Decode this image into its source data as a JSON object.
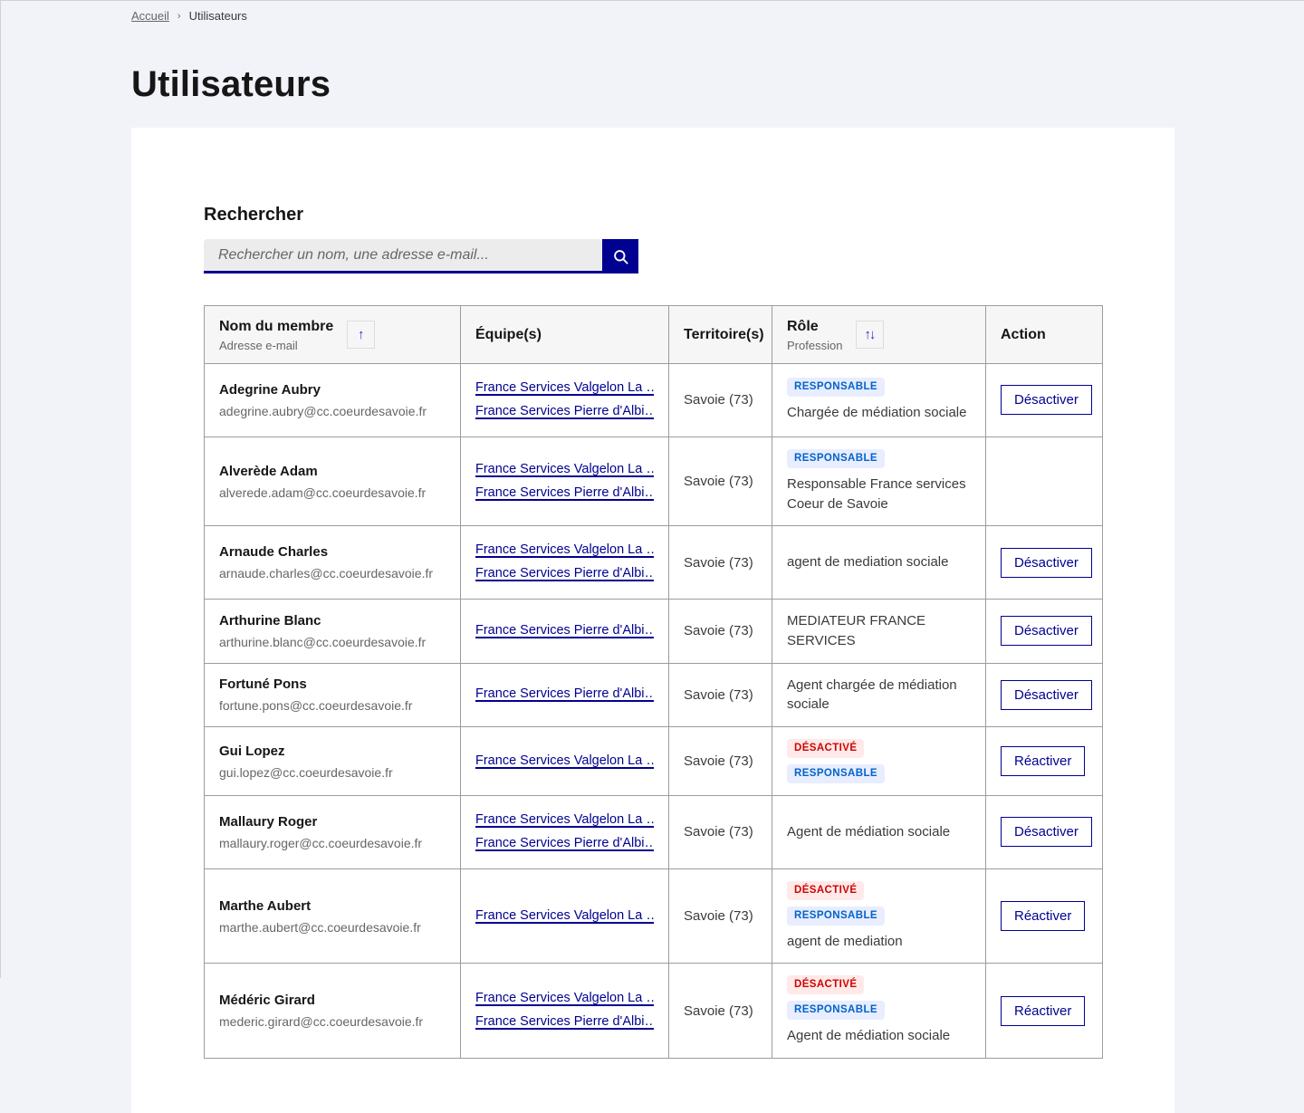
{
  "colors": {
    "accent": "#000091",
    "page_background": "#f2f2f9",
    "link": "#000091",
    "badge_info_bg": "#e8edff",
    "badge_info_text": "#0063cb",
    "badge_error_bg": "#ffe9e9",
    "badge_error_text": "#ce0500"
  },
  "breadcrumb": {
    "home": "Accueil",
    "separator": "›",
    "current": "Utilisateurs"
  },
  "page": {
    "title": "Utilisateurs"
  },
  "search": {
    "label": "Rechercher",
    "placeholder": "Rechercher un nom, une adresse e-mail...",
    "value": "",
    "button_icon": "search-icon"
  },
  "table": {
    "headers": {
      "member": {
        "title": "Nom du membre",
        "subtitle": "Adresse e-mail",
        "sort_icon": "arrow-up-icon",
        "sort_glyph": "↑"
      },
      "teams": {
        "title": "Équipe(s)"
      },
      "territories": {
        "title": "Territoire(s)"
      },
      "role": {
        "title": "Rôle",
        "subtitle": "Profession",
        "sort_icon": "arrows-up-down-icon",
        "sort_glyph": "↑↓"
      },
      "action": {
        "title": "Action"
      }
    },
    "rows": [
      {
        "name": "Adegrine Aubry",
        "email": "adegrine.aubry@cc.coeurdesavoie.fr",
        "teams": [
          "France Services Valgelon La …",
          "France Services Pierre d'Albi…"
        ],
        "territory": "Savoie (73)",
        "badges": [
          {
            "label": "RESPONSABLE",
            "type": "info"
          }
        ],
        "profession": "Chargée de médiation sociale",
        "action": "Désactiver"
      },
      {
        "name": "Alverède Adam",
        "email": "alverede.adam@cc.coeurdesavoie.fr",
        "teams": [
          "France Services Valgelon La …",
          "France Services Pierre d'Albi…"
        ],
        "territory": "Savoie (73)",
        "badges": [
          {
            "label": "RESPONSABLE",
            "type": "info"
          }
        ],
        "profession": "Responsable France services Coeur de Savoie",
        "action": null
      },
      {
        "name": "Arnaude Charles",
        "email": "arnaude.charles@cc.coeurdesavoie.fr",
        "teams": [
          "France Services Valgelon La …",
          "France Services Pierre d'Albi…"
        ],
        "territory": "Savoie (73)",
        "badges": [],
        "profession": "agent de mediation sociale",
        "action": "Désactiver"
      },
      {
        "name": "Arthurine Blanc",
        "email": "arthurine.blanc@cc.coeurdesavoie.fr",
        "teams": [
          "France Services Pierre d'Albi…"
        ],
        "territory": "Savoie (73)",
        "badges": [],
        "profession": "MEDIATEUR FRANCE SERVICES",
        "action": "Désactiver"
      },
      {
        "name": "Fortuné Pons",
        "email": "fortune.pons@cc.coeurdesavoie.fr",
        "teams": [
          "France Services Pierre d'Albi…"
        ],
        "territory": "Savoie (73)",
        "badges": [],
        "profession": "Agent chargée de médiation sociale",
        "action": "Désactiver"
      },
      {
        "name": "Gui Lopez",
        "email": "gui.lopez@cc.coeurdesavoie.fr",
        "teams": [
          "France Services Valgelon La …"
        ],
        "territory": "Savoie (73)",
        "badges": [
          {
            "label": "DÉSACTIVÉ",
            "type": "error"
          },
          {
            "label": "RESPONSABLE",
            "type": "info"
          }
        ],
        "profession": "",
        "action": "Réactiver"
      },
      {
        "name": "Mallaury Roger",
        "email": "mallaury.roger@cc.coeurdesavoie.fr",
        "teams": [
          "France Services Valgelon La …",
          "France Services Pierre d'Albi…"
        ],
        "territory": "Savoie (73)",
        "badges": [],
        "profession": "Agent de médiation sociale",
        "action": "Désactiver"
      },
      {
        "name": "Marthe Aubert",
        "email": "marthe.aubert@cc.coeurdesavoie.fr",
        "teams": [
          "France Services Valgelon La …"
        ],
        "territory": "Savoie (73)",
        "badges": [
          {
            "label": "DÉSACTIVÉ",
            "type": "error"
          },
          {
            "label": "RESPONSABLE",
            "type": "info"
          }
        ],
        "profession": "agent de mediation",
        "action": "Réactiver"
      },
      {
        "name": "Médéric Girard",
        "email": "mederic.girard@cc.coeurdesavoie.fr",
        "teams": [
          "France Services Valgelon La …",
          "France Services Pierre d'Albi…"
        ],
        "territory": "Savoie (73)",
        "badges": [
          {
            "label": "DÉSACTIVÉ",
            "type": "error"
          },
          {
            "label": "RESPONSABLE",
            "type": "info"
          }
        ],
        "profession": "Agent de médiation sociale",
        "action": "Réactiver"
      }
    ]
  }
}
